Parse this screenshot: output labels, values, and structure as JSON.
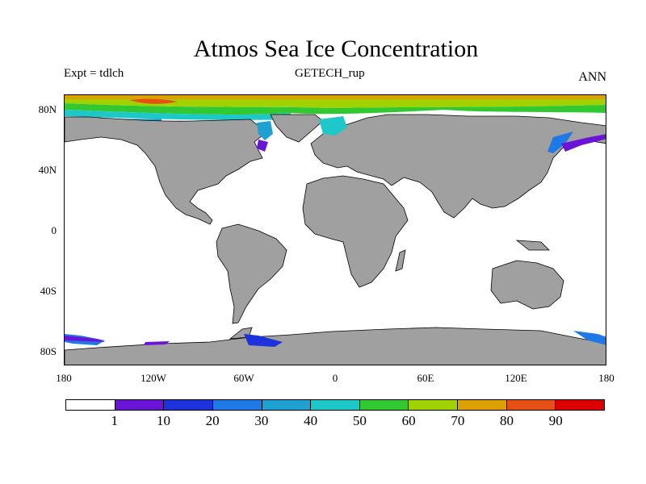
{
  "title": "Atmos Sea Ice Concentration",
  "left_label": "Expt = tdlch",
  "center_label": "GETECH_rup",
  "right_label": "ANN",
  "lat_ticks": [
    "80N",
    "40N",
    "0",
    "40S",
    "80S"
  ],
  "lon_ticks": [
    "180",
    "120W",
    "60W",
    "0",
    "60E",
    "120E",
    "180"
  ],
  "colorbar": {
    "levels": [
      "1",
      "10",
      "20",
      "30",
      "40",
      "50",
      "60",
      "70",
      "80",
      "90"
    ],
    "colors": [
      "#ffffff",
      "#6a14d8",
      "#1e32dc",
      "#1e78e6",
      "#1ea0d2",
      "#1ec8c8",
      "#32c832",
      "#a0d200",
      "#dca000",
      "#e65014",
      "#dc0000"
    ]
  },
  "colors": {
    "land": "#a0a0a0",
    "ocean": "#ffffff",
    "coast": "#000000"
  }
}
